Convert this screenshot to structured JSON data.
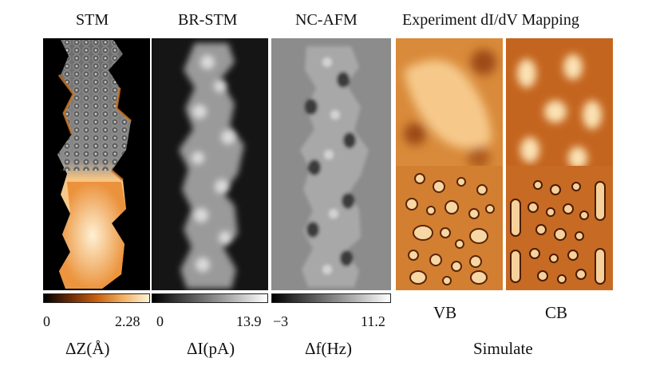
{
  "titles": {
    "stm": "STM",
    "br_stm": "BR-STM",
    "nc_afm": "NC-AFM",
    "exp": "Experiment dI/dV Mapping"
  },
  "colorbars": {
    "stm": {
      "min": "0",
      "max": "2.28",
      "label": "ΔZ(Å)"
    },
    "br_stm": {
      "min": "0",
      "max": "13.9",
      "label": "ΔI(pA)"
    },
    "nc_afm": {
      "min": "−3",
      "max": "11.2",
      "label": "Δf(Hz)"
    }
  },
  "maps": {
    "vb": "VB",
    "cb": "CB",
    "footer": "Simulate"
  },
  "colors": {
    "stm_dark": "#000000",
    "stm_mid": "#c8600f",
    "stm_light": "#fff3d6",
    "map_dark": "#a8500f",
    "map_light": "#fbd6a0"
  }
}
